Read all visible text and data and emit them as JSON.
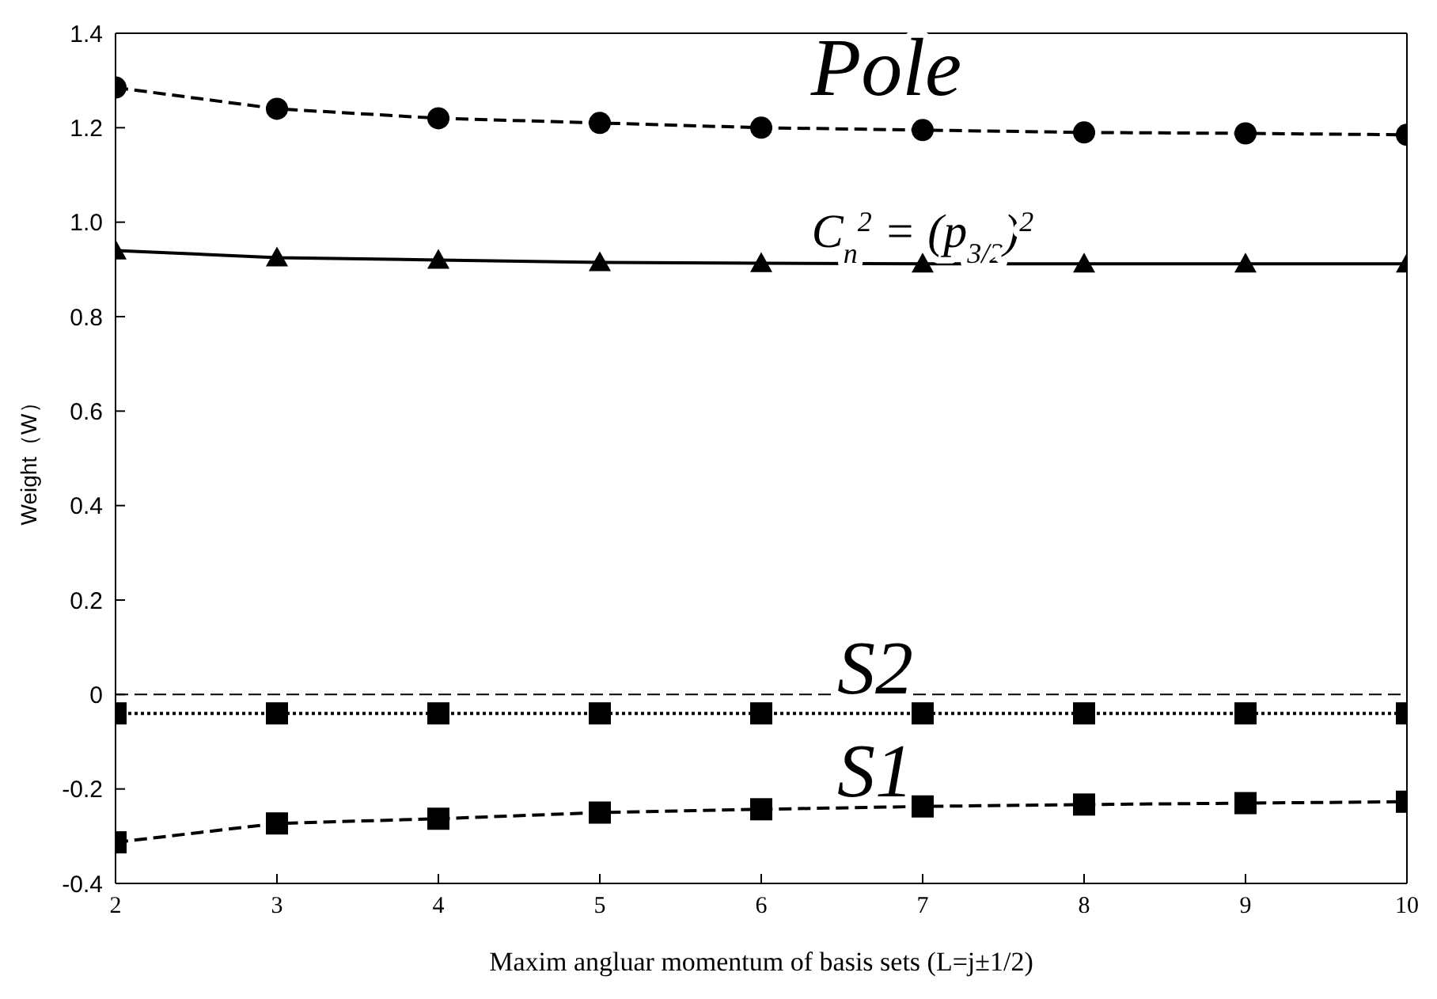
{
  "chart_data": {
    "type": "line",
    "xlabel": "Maxim angluar momentum of basis sets (L=j±1/2)",
    "ylabel": "Weight（W）",
    "x": [
      2,
      3,
      4,
      5,
      6,
      7,
      8,
      9,
      10
    ],
    "series": [
      {
        "color": "#000000",
        "marker": "circle",
        "line_style": "dashed",
        "values": [
          1.285,
          1.24,
          1.22,
          1.21,
          1.2,
          1.195,
          1.19,
          1.188,
          1.185
        ]
      },
      {
        "color": "#000000",
        "marker": "triangle",
        "line_style": "solid",
        "values": [
          0.94,
          0.925,
          0.92,
          0.915,
          0.913,
          0.912,
          0.912,
          0.912,
          0.912
        ]
      },
      {
        "color": "#000000",
        "marker": "square",
        "line_style": "dotted",
        "values": [
          -0.04,
          -0.04,
          -0.04,
          -0.04,
          -0.04,
          -0.04,
          -0.04,
          -0.04,
          -0.04
        ]
      },
      {
        "color": "#000000",
        "marker": "square",
        "line_style": "dashed",
        "values": [
          -0.313,
          -0.273,
          -0.263,
          -0.25,
          -0.243,
          -0.237,
          -0.233,
          -0.23,
          -0.227
        ]
      }
    ],
    "xlim": [
      2,
      10
    ],
    "xticks": [
      2,
      3,
      4,
      5,
      6,
      7,
      8,
      9,
      10
    ],
    "ylim": [
      -0.4,
      1.4
    ],
    "yticks": [
      -0.4,
      -0.2,
      0,
      0.2,
      0.4,
      0.6,
      0.8,
      {
        "value": 1,
        "label": "1.0"
      },
      1.2,
      1.4
    ],
    "ref_lines": [
      {
        "axis": "y",
        "value": 0,
        "line_style": "dashed"
      }
    ],
    "annotations": [
      "Pole",
      "C$_{n}$$^{2}$ = (p$_{3/2}$)$^{2}$",
      "S2",
      "S1"
    ],
    "grid": false,
    "legend": false
  }
}
